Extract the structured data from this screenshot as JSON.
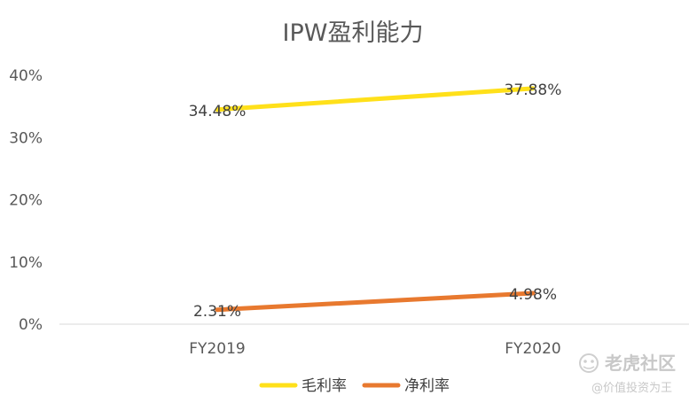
{
  "chart_data": {
    "type": "line",
    "title": "IPW盈利能力",
    "xlabel": "",
    "ylabel": "",
    "categories": [
      "FY2019",
      "FY2020"
    ],
    "ylim": [
      0,
      40
    ],
    "y_ticks": [
      0,
      10,
      20,
      30,
      40
    ],
    "y_tick_labels": [
      "0%",
      "10%",
      "20%",
      "30%",
      "40%"
    ],
    "grid": false,
    "legend_position": "bottom",
    "series": [
      {
        "name": "毛利率",
        "values": [
          34.48,
          37.88
        ],
        "labels": [
          "34.48%",
          "37.88%"
        ],
        "color": "#FFE01A"
      },
      {
        "name": "净利率",
        "values": [
          2.31,
          4.98
        ],
        "labels": [
          "2.31%",
          "4.98%"
        ],
        "color": "#E8792F"
      }
    ]
  },
  "watermark": {
    "main": "老虎社区",
    "sub": "@价值投资为王",
    "icon": "tiger-community-logo-icon"
  }
}
